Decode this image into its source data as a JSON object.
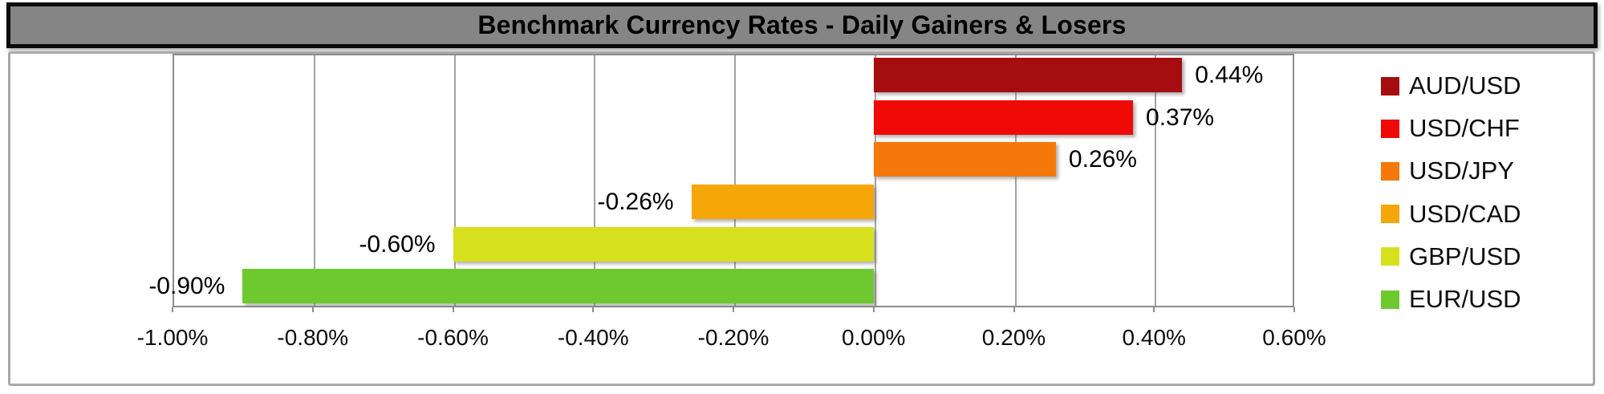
{
  "title": "Benchmark Currency Rates - Daily Gainers & Losers",
  "colors": {
    "title_bg": "#858585",
    "title_border": "#0a0a0a",
    "frame_border": "#a9a9a9",
    "plot_border": "#8c8c8c",
    "gridline": "#a3a3a3",
    "label_text": "#000000"
  },
  "chart_data": {
    "type": "bar",
    "orientation": "horizontal",
    "title": "Benchmark Currency Rates - Daily Gainers & Losers",
    "categories": [
      "AUD/USD",
      "USD/CHF",
      "USD/JPY",
      "USD/CAD",
      "GBP/USD",
      "EUR/USD"
    ],
    "values": [
      0.44,
      0.37,
      0.26,
      -0.26,
      -0.6,
      -0.9
    ],
    "data_labels": [
      "0.44%",
      "0.37%",
      "0.26%",
      "-0.26%",
      "-0.60%",
      "-0.90%"
    ],
    "bar_colors": [
      "#a50d10",
      "#ef0a07",
      "#f5790a",
      "#f6a609",
      "#d6e01d",
      "#6ec92f"
    ],
    "xlabel": "",
    "ylabel": "",
    "xlim": [
      -1.0,
      0.6
    ],
    "x_tick_labels": [
      "-1.00%",
      "-0.80%",
      "-0.60%",
      "-0.40%",
      "-0.20%",
      "0.00%",
      "0.20%",
      "0.40%",
      "0.60%"
    ],
    "x_tick_values": [
      -1.0,
      -0.8,
      -0.6,
      -0.4,
      -0.2,
      0.0,
      0.2,
      0.4,
      0.6
    ],
    "grid": "vertical-on",
    "legend_position": "right",
    "legend": [
      {
        "label": "AUD/USD",
        "color": "#a50d10"
      },
      {
        "label": "USD/CHF",
        "color": "#ef0a07"
      },
      {
        "label": "USD/JPY",
        "color": "#f5790a"
      },
      {
        "label": "USD/CAD",
        "color": "#f6a609"
      },
      {
        "label": "GBP/USD",
        "color": "#d6e01d"
      },
      {
        "label": "EUR/USD",
        "color": "#6ec92f"
      }
    ]
  }
}
